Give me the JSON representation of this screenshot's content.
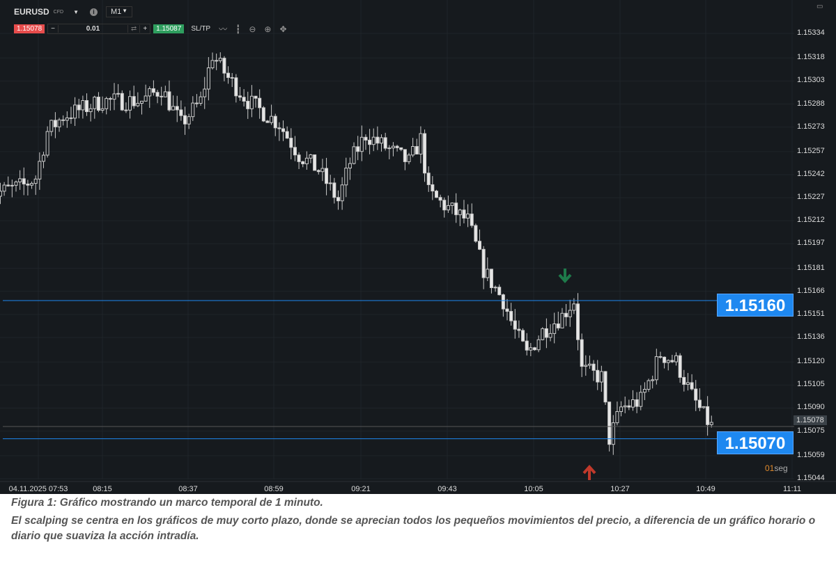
{
  "toolbar": {
    "symbol": "EURUSD",
    "symbol_tag": "CFD",
    "timeframe": "M1",
    "bid": "1.15078",
    "ask": "1.15087",
    "quantity": "0.01",
    "minus": "−",
    "plus": "+",
    "sltp": "SL/TP"
  },
  "icons": [
    "chevron-down-icon",
    "info-icon",
    "line-chart-icon",
    "candles-icon",
    "zoom-out-icon",
    "zoom-in-icon",
    "move-icon",
    "swap-icon",
    "maximize-icon"
  ],
  "price_axis": [
    "1.15334",
    "1.15318",
    "1.15303",
    "1.15288",
    "1.15273",
    "1.15257",
    "1.15242",
    "1.15227",
    "1.15212",
    "1.15197",
    "1.15181",
    "1.15166",
    "1.15151",
    "1.15136",
    "1.15120",
    "1.15105",
    "1.15090",
    "1.15075",
    "1.15059",
    "1.15044"
  ],
  "time_axis": [
    "04.11.2025 07:53",
    "08:15",
    "08:37",
    "08:59",
    "09:21",
    "09:43",
    "10:05",
    "10:27",
    "10:49",
    "11:11"
  ],
  "levels": {
    "upper": "1.15160",
    "lower": "1.15070",
    "current": "1.15078"
  },
  "colors": {
    "level_line": "#1e88f0",
    "sell_arrow": "#1e7a4a",
    "buy_arrow": "#c0392b"
  },
  "timer": {
    "value": "01",
    "unit": "seg"
  },
  "chart_data": {
    "type": "candlestick",
    "timeframe": "1 minute",
    "ylim": [
      1.15044,
      1.15334
    ],
    "path": [
      [
        "07:45",
        1.15245
      ],
      [
        "07:48",
        1.1523
      ],
      [
        "07:55",
        1.15235
      ],
      [
        "07:58",
        1.1524
      ],
      [
        "08:01",
        1.1527
      ],
      [
        "08:05",
        1.1528
      ],
      [
        "08:10",
        1.15285
      ],
      [
        "08:15",
        1.1529
      ],
      [
        "08:25",
        1.1529
      ],
      [
        "08:30",
        1.15298
      ],
      [
        "08:35",
        1.15275
      ],
      [
        "08:40",
        1.1529
      ],
      [
        "08:43",
        1.1532
      ],
      [
        "08:47",
        1.15305
      ],
      [
        "08:52",
        1.1529
      ],
      [
        "09:00",
        1.15275
      ],
      [
        "09:05",
        1.15255
      ],
      [
        "09:10",
        1.15245
      ],
      [
        "09:15",
        1.15225
      ],
      [
        "09:18",
        1.1525
      ],
      [
        "09:22",
        1.15268
      ],
      [
        "09:27",
        1.1526
      ],
      [
        "09:33",
        1.1525
      ],
      [
        "09:36",
        1.15265
      ],
      [
        "09:38",
        1.1523
      ],
      [
        "09:42",
        1.15222
      ],
      [
        "09:48",
        1.15212
      ],
      [
        "09:52",
        1.1518
      ],
      [
        "09:57",
        1.1516
      ],
      [
        "10:00",
        1.1514
      ],
      [
        "10:03",
        1.15125
      ],
      [
        "10:07",
        1.1514
      ],
      [
        "10:12",
        1.1515
      ],
      [
        "10:15",
        1.1516
      ],
      [
        "10:17",
        1.15115
      ],
      [
        "10:22",
        1.1511
      ],
      [
        "10:24",
        1.1507
      ],
      [
        "10:27",
        1.1509
      ],
      [
        "10:32",
        1.15095
      ],
      [
        "10:37",
        1.15125
      ],
      [
        "10:41",
        1.1512
      ],
      [
        "10:45",
        1.15098
      ],
      [
        "10:48",
        1.15085
      ],
      [
        "10:50",
        1.15078
      ]
    ]
  },
  "caption": {
    "title": "Figura 1: Gráfico mostrando un marco temporal de 1 minuto.",
    "body": "El scalping se centra en los gráficos de muy corto plazo, donde se aprecian todos los pequeños movimientos del precio, a diferencia de un gráfico horario o diario que suaviza la acción intradía."
  }
}
